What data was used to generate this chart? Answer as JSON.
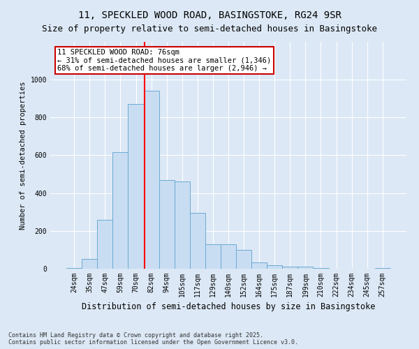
{
  "title": "11, SPECKLED WOOD ROAD, BASINGSTOKE, RG24 9SR",
  "subtitle": "Size of property relative to semi-detached houses in Basingstoke",
  "xlabel": "Distribution of semi-detached houses by size in Basingstoke",
  "ylabel": "Number of semi-detached properties",
  "categories": [
    "24sqm",
    "35sqm",
    "47sqm",
    "59sqm",
    "70sqm",
    "82sqm",
    "94sqm",
    "105sqm",
    "117sqm",
    "129sqm",
    "140sqm",
    "152sqm",
    "164sqm",
    "175sqm",
    "187sqm",
    "199sqm",
    "210sqm",
    "222sqm",
    "234sqm",
    "245sqm",
    "257sqm"
  ],
  "values": [
    5,
    50,
    260,
    615,
    870,
    940,
    470,
    460,
    295,
    130,
    130,
    100,
    35,
    20,
    12,
    10,
    5,
    1,
    0,
    0,
    3
  ],
  "bar_color": "#c9ddf2",
  "bar_edge_color": "#6aaad4",
  "red_line_x": 4.55,
  "red_line_label": "11 SPECKLED WOOD ROAD: 76sqm",
  "pct_smaller": "31% of semi-detached houses are smaller (1,346)",
  "pct_larger": "68% of semi-detached houses are larger (2,946)",
  "annotation_box_color": "#ffffff",
  "annotation_border_color": "#cc0000",
  "ylim": [
    0,
    1200
  ],
  "yticks": [
    0,
    200,
    400,
    600,
    800,
    1000
  ],
  "background_color": "#dce8f5",
  "axes_background_color": "#dce8f5",
  "footer": "Contains HM Land Registry data © Crown copyright and database right 2025.\nContains public sector information licensed under the Open Government Licence v3.0.",
  "title_fontsize": 10,
  "subtitle_fontsize": 9,
  "xlabel_fontsize": 8.5,
  "ylabel_fontsize": 7.5,
  "tick_fontsize": 7,
  "annotation_fontsize": 7.5,
  "footer_fontsize": 6
}
